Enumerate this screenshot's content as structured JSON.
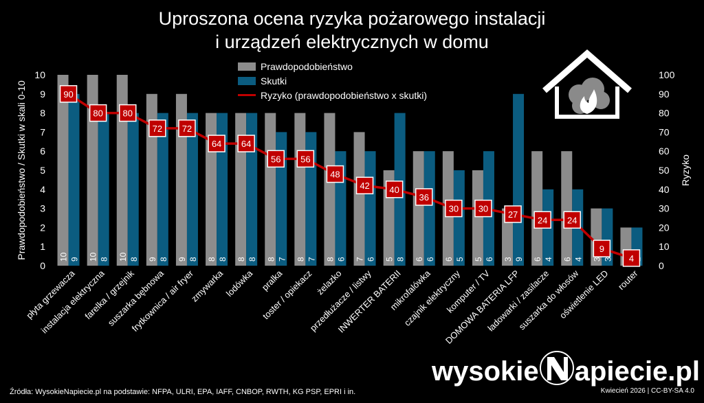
{
  "title_line1": "Uproszona ocena ryzyka pożarowego instalacji",
  "title_line2": "i urządzeń elektrycznych w domu",
  "source": "Źródła: WysokieNapiecie.pl na podstawie: NFPA, ULRI, EPA, IAFF, CNBOP, RWTH, KG PSP, EPRI i in.",
  "footer": "Kwiecień 2026  |  CC-BY-SA 4.0",
  "logo": {
    "part1": "wysokie",
    "part2": "apiecie.pl"
  },
  "icon": "house-fire-icon",
  "colors": {
    "prob": "#8c8c8c",
    "eff": "#0b5c80",
    "risk": "#c00000",
    "bg": "#000000"
  },
  "chart_data": {
    "type": "bar",
    "categories": [
      "płyta grzewacza",
      "instalacja elektryczna",
      "farelka / grzejnik",
      "suszarka bębnowa",
      "frytkownica / air fryer",
      "zmywarka",
      "lodówka",
      "pralka",
      "toster / opiekacz",
      "żelazko",
      "przedłużacze / listwy",
      "INWERTER BATERII",
      "mikrofalówka",
      "czajnik elektryczny",
      "komputer / TV",
      "DOMOWA BATERIA LFP",
      "ładowarki / zasilacze",
      "suszarka do włosów",
      "oświetlenie LED",
      "router"
    ],
    "series": [
      {
        "name": "Prawdopodobieństwo",
        "values": [
          10,
          10,
          10,
          9,
          9,
          8,
          8,
          8,
          8,
          8,
          7,
          5,
          6,
          6,
          5,
          3,
          6,
          6,
          3,
          2
        ]
      },
      {
        "name": "Skutki",
        "values": [
          9,
          8,
          8,
          8,
          8,
          8,
          8,
          7,
          7,
          6,
          6,
          8,
          6,
          5,
          6,
          9,
          4,
          4,
          3,
          2
        ]
      },
      {
        "name": "Ryzyko (prawdopodobieństwo x skutki)",
        "values": [
          90,
          80,
          80,
          72,
          72,
          64,
          64,
          56,
          56,
          48,
          42,
          40,
          36,
          30,
          30,
          27,
          24,
          24,
          9,
          4
        ]
      }
    ],
    "ylabel": "Prawdopodobieństwo / Skutki w skali 0-10",
    "y2label": "Ryzyko",
    "ylim": [
      0,
      10
    ],
    "y2lim": [
      0,
      100
    ],
    "yticks": [
      0,
      1,
      2,
      3,
      4,
      5,
      6,
      7,
      8,
      9,
      10
    ],
    "y2ticks": [
      0,
      10,
      20,
      30,
      40,
      50,
      60,
      70,
      80,
      90,
      100
    ],
    "legend_position": "top-center",
    "grid": false
  }
}
